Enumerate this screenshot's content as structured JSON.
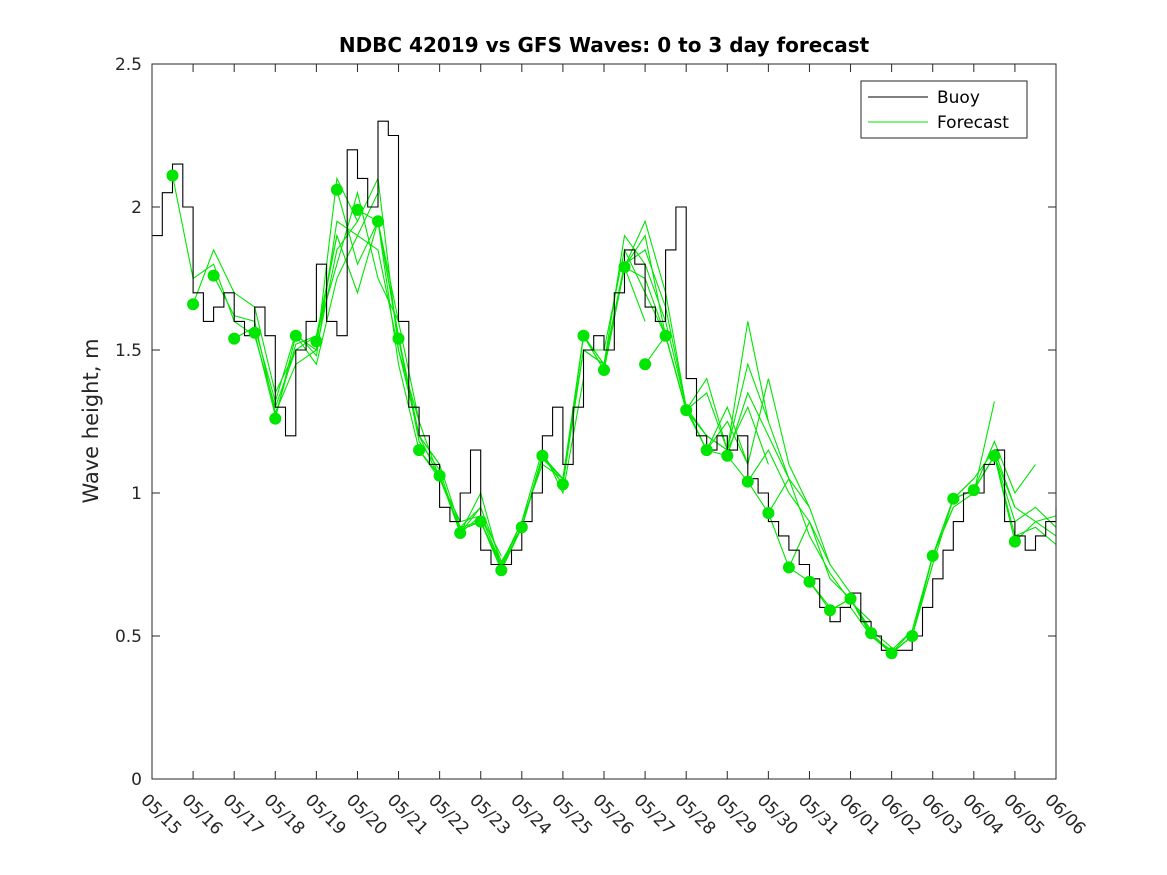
{
  "chart_data": {
    "type": "line",
    "title": "NDBC 42019 vs GFS Waves: 0 to 3 day forecast",
    "xlabel": "",
    "ylabel": "Wave height, m",
    "x_domain": [
      0,
      22
    ],
    "ylim": [
      0,
      2.5
    ],
    "y_ticks": [
      0,
      0.5,
      1,
      1.5,
      2,
      2.5
    ],
    "y_tick_labels": [
      "0",
      "0.5",
      "1",
      "1.5",
      "2",
      "2.5"
    ],
    "x_ticks": [
      0,
      1,
      2,
      3,
      4,
      5,
      6,
      7,
      8,
      9,
      10,
      11,
      12,
      13,
      14,
      15,
      16,
      17,
      18,
      19,
      20,
      21,
      22
    ],
    "x_tick_labels": [
      "05/15",
      "05/16",
      "05/17",
      "05/18",
      "05/19",
      "05/20",
      "05/21",
      "05/22",
      "05/23",
      "05/24",
      "05/25",
      "05/26",
      "05/27",
      "05/28",
      "05/29",
      "05/30",
      "05/31",
      "06/01",
      "06/02",
      "06/03",
      "06/04",
      "06/05",
      "06/06"
    ],
    "legend": {
      "position": "top-right",
      "entries": [
        "Buoy",
        "Forecast"
      ]
    },
    "colors": {
      "buoy": "#000000",
      "forecast": "#00e600",
      "axis": "#262626"
    },
    "buoy": {
      "name": "Buoy",
      "x": [
        0,
        0.25,
        0.5,
        0.75,
        1,
        1.25,
        1.5,
        1.75,
        2,
        2.25,
        2.5,
        2.75,
        3,
        3.25,
        3.5,
        3.75,
        4,
        4.25,
        4.5,
        4.75,
        5,
        5.25,
        5.5,
        5.75,
        6,
        6.25,
        6.5,
        6.75,
        7,
        7.25,
        7.5,
        7.75,
        8,
        8.25,
        8.5,
        8.75,
        9,
        9.25,
        9.5,
        9.75,
        10,
        10.25,
        10.5,
        10.75,
        11,
        11.25,
        11.5,
        11.75,
        12,
        12.25,
        12.5,
        12.75,
        13,
        13.25,
        13.5,
        13.75,
        14,
        14.25,
        14.5,
        14.75,
        15,
        15.25,
        15.5,
        15.75,
        16,
        16.25,
        16.5,
        16.75,
        17,
        17.25,
        17.5,
        17.75,
        18,
        18.25,
        18.5,
        18.75,
        19,
        19.25,
        19.5,
        19.75,
        20,
        20.25,
        20.5,
        20.75,
        21,
        21.25,
        21.5,
        21.75,
        22
      ],
      "y": [
        1.9,
        2.05,
        2.15,
        2.0,
        1.7,
        1.6,
        1.65,
        1.7,
        1.6,
        1.55,
        1.65,
        1.55,
        1.3,
        1.2,
        1.5,
        1.6,
        1.8,
        1.6,
        1.55,
        2.2,
        2.1,
        2.0,
        2.3,
        2.25,
        1.6,
        1.3,
        1.2,
        1.1,
        0.95,
        0.9,
        1.0,
        1.15,
        0.8,
        0.75,
        0.75,
        0.8,
        0.9,
        1.0,
        1.2,
        1.3,
        1.1,
        1.3,
        1.5,
        1.55,
        1.5,
        1.7,
        1.85,
        1.8,
        1.65,
        1.6,
        1.85,
        2.0,
        1.4,
        1.2,
        1.15,
        1.2,
        1.15,
        1.2,
        1.05,
        1.0,
        0.9,
        0.85,
        0.8,
        0.75,
        0.7,
        0.6,
        0.55,
        0.6,
        0.65,
        0.55,
        0.5,
        0.45,
        0.45,
        0.45,
        0.5,
        0.6,
        0.7,
        0.8,
        0.9,
        1.0,
        1.0,
        1.1,
        1.15,
        0.9,
        0.85,
        0.8,
        0.85,
        0.9,
        0.95
      ]
    },
    "forecast_points": {
      "name": "Forecast",
      "x": [
        0.5,
        1,
        1.5,
        2,
        2.5,
        3,
        3.5,
        4,
        4.5,
        5,
        5.5,
        6,
        6.5,
        7,
        7.5,
        8,
        8.5,
        9,
        9.5,
        10,
        10.5,
        11,
        11.5,
        12,
        12.5,
        13,
        13.5,
        14,
        14.5,
        15,
        15.5,
        16,
        16.5,
        17,
        17.5,
        18,
        18.5,
        19,
        19.5,
        20,
        20.5,
        21
      ],
      "y": [
        2.11,
        1.66,
        1.76,
        1.54,
        1.56,
        1.26,
        1.55,
        1.53,
        2.06,
        1.99,
        1.95,
        1.54,
        1.15,
        1.06,
        0.86,
        0.9,
        0.73,
        0.88,
        1.13,
        1.03,
        1.55,
        1.43,
        1.79,
        1.45,
        1.55,
        1.29,
        1.15,
        1.13,
        1.04,
        0.93,
        0.74,
        0.69,
        0.59,
        0.63,
        0.51,
        0.44,
        0.5,
        0.78,
        0.98,
        1.01,
        1.13,
        0.83
      ]
    },
    "forecast_runs": [
      {
        "x": [
          0.5,
          1,
          1.5,
          2,
          2.5,
          3,
          3.5
        ],
        "y": [
          2.11,
          1.75,
          1.8,
          1.6,
          1.55,
          1.3,
          1.5
        ]
      },
      {
        "x": [
          1,
          1.5,
          2,
          2.5,
          3,
          3.5,
          4,
          4.5
        ],
        "y": [
          1.66,
          1.85,
          1.7,
          1.65,
          1.35,
          1.5,
          1.55,
          1.9
        ]
      },
      {
        "x": [
          1.5,
          2,
          2.5,
          3,
          3.5,
          4,
          4.5,
          5
        ],
        "y": [
          1.76,
          1.62,
          1.6,
          1.28,
          1.45,
          1.5,
          1.85,
          1.95
        ]
      },
      {
        "x": [
          2,
          2.5,
          3,
          3.5,
          4,
          4.5,
          5,
          5.5
        ],
        "y": [
          1.54,
          1.58,
          1.32,
          1.56,
          1.48,
          1.95,
          1.9,
          2.05
        ]
      },
      {
        "x": [
          2.5,
          3,
          3.5,
          4,
          4.5,
          5,
          5.5,
          6
        ],
        "y": [
          1.56,
          1.27,
          1.52,
          1.55,
          1.8,
          2.05,
          1.75,
          1.6
        ]
      },
      {
        "x": [
          3,
          3.5,
          4,
          4.5,
          5,
          5.5,
          6,
          6.5
        ],
        "y": [
          1.26,
          1.55,
          1.5,
          2.1,
          1.95,
          2.1,
          1.5,
          1.25
        ]
      },
      {
        "x": [
          3.5,
          4,
          4.5,
          5,
          5.5,
          6,
          6.5,
          7
        ],
        "y": [
          1.55,
          1.45,
          1.75,
          1.9,
          1.85,
          1.5,
          1.2,
          1.1
        ]
      },
      {
        "x": [
          4,
          4.5,
          5,
          5.5,
          6,
          6.5,
          7,
          7.5
        ],
        "y": [
          1.53,
          1.9,
          1.7,
          1.95,
          1.45,
          1.15,
          1.05,
          0.9
        ]
      },
      {
        "x": [
          4.5,
          5,
          5.5,
          6,
          6.5,
          7,
          7.5,
          8
        ],
        "y": [
          2.06,
          1.8,
          1.95,
          1.55,
          1.2,
          1.1,
          0.88,
          0.95
        ]
      },
      {
        "x": [
          5,
          5.5,
          6,
          6.5,
          7,
          7.5,
          8,
          8.5
        ],
        "y": [
          1.99,
          1.95,
          1.6,
          1.25,
          1.05,
          0.9,
          0.92,
          0.78
        ]
      },
      {
        "x": [
          5.5,
          6,
          6.5,
          7,
          7.5,
          8,
          8.5,
          9
        ],
        "y": [
          1.95,
          1.54,
          1.2,
          1.05,
          0.88,
          0.9,
          0.75,
          0.9
        ]
      },
      {
        "x": [
          6,
          6.5,
          7,
          7.5,
          8,
          8.5,
          9,
          9.5
        ],
        "y": [
          1.54,
          1.18,
          1.08,
          0.86,
          0.95,
          0.76,
          0.88,
          1.12
        ]
      },
      {
        "x": [
          6.5,
          7,
          7.5,
          8,
          8.5,
          9,
          9.5,
          10
        ],
        "y": [
          1.15,
          1.06,
          0.87,
          0.9,
          0.74,
          0.9,
          1.1,
          1.05
        ]
      },
      {
        "x": [
          7,
          7.5,
          8,
          8.5,
          9,
          9.5,
          10,
          10.5
        ],
        "y": [
          1.06,
          0.86,
          0.92,
          0.75,
          0.9,
          1.15,
          1.0,
          1.4
        ]
      },
      {
        "x": [
          7.5,
          8,
          8.5,
          9,
          9.5,
          10,
          10.5,
          11
        ],
        "y": [
          0.86,
          1.0,
          0.74,
          0.88,
          1.12,
          1.05,
          1.5,
          1.45
        ]
      },
      {
        "x": [
          8,
          8.5,
          9,
          9.5,
          10,
          10.5,
          11,
          11.5
        ],
        "y": [
          0.9,
          0.73,
          0.88,
          1.13,
          1.05,
          1.55,
          1.45,
          1.8
        ]
      },
      {
        "x": [
          8.5,
          9,
          9.5,
          10,
          10.5,
          11,
          11.5,
          12
        ],
        "y": [
          0.73,
          0.88,
          1.13,
          1.03,
          1.55,
          1.43,
          1.79,
          1.6
        ]
      },
      {
        "x": [
          9,
          9.5,
          10,
          10.5,
          11,
          11.5,
          12,
          12.5
        ],
        "y": [
          0.88,
          1.13,
          1.05,
          1.5,
          1.5,
          1.85,
          1.7,
          1.55
        ]
      },
      {
        "x": [
          9.5,
          10,
          10.5,
          11,
          11.5,
          12,
          12.5,
          13
        ],
        "y": [
          1.13,
          1.03,
          1.55,
          1.45,
          1.9,
          1.8,
          1.6,
          1.3
        ]
      },
      {
        "x": [
          10,
          10.5,
          11,
          11.5,
          12,
          12.5,
          13,
          13.5
        ],
        "y": [
          1.03,
          1.5,
          1.45,
          1.8,
          1.85,
          1.65,
          1.3,
          1.2
        ]
      },
      {
        "x": [
          10.5,
          11,
          11.5,
          12,
          12.5,
          13,
          13.5,
          14
        ],
        "y": [
          1.55,
          1.43,
          1.79,
          1.9,
          1.55,
          1.29,
          1.2,
          1.15
        ]
      },
      {
        "x": [
          11,
          11.5,
          12,
          12.5,
          13,
          13.5,
          14,
          14.5
        ],
        "y": [
          1.43,
          1.79,
          1.95,
          1.7,
          1.3,
          1.15,
          1.25,
          1.1
        ]
      },
      {
        "x": [
          11.5,
          12,
          12.5,
          13,
          13.5,
          14,
          14.5,
          15
        ],
        "y": [
          1.79,
          1.75,
          1.55,
          1.29,
          1.2,
          1.15,
          1.45,
          1.25
        ]
      },
      {
        "x": [
          12,
          12.5,
          13,
          13.5,
          14,
          14.5,
          15
        ],
        "y": [
          1.45,
          1.55,
          1.29,
          1.35,
          1.15,
          1.3,
          1.1
        ]
      },
      {
        "x": [
          12.5,
          13,
          13.5,
          14,
          14.5,
          15,
          15.5
        ],
        "y": [
          1.55,
          1.29,
          1.4,
          1.15,
          1.6,
          1.25,
          1.05
        ]
      },
      {
        "x": [
          13,
          13.5,
          14,
          14.5,
          15,
          15.5,
          16
        ],
        "y": [
          1.29,
          1.15,
          1.3,
          1.1,
          1.4,
          1.1,
          0.95
        ]
      },
      {
        "x": [
          13.5,
          14,
          14.5,
          15,
          15.5,
          16,
          16.5
        ],
        "y": [
          1.15,
          1.13,
          1.35,
          1.2,
          1.05,
          0.95,
          0.75
        ]
      },
      {
        "x": [
          14,
          14.5,
          15,
          15.5,
          16,
          16.5,
          17
        ],
        "y": [
          1.13,
          1.04,
          1.15,
          1.0,
          0.9,
          0.75,
          0.65
        ]
      },
      {
        "x": [
          14.5,
          15,
          15.5,
          16,
          16.5,
          17,
          17.5
        ],
        "y": [
          1.04,
          0.93,
          1.05,
          0.85,
          0.72,
          0.62,
          0.55
        ]
      },
      {
        "x": [
          15,
          15.5,
          16,
          16.5,
          17,
          17.5,
          18
        ],
        "y": [
          0.93,
          0.74,
          0.9,
          0.7,
          0.63,
          0.52,
          0.46
        ]
      },
      {
        "x": [
          15.5,
          16,
          16.5,
          17,
          17.5,
          18,
          18.5
        ],
        "y": [
          0.74,
          0.69,
          0.6,
          0.6,
          0.5,
          0.45,
          0.52
        ]
      },
      {
        "x": [
          16,
          16.5,
          17,
          17.5,
          18,
          18.5,
          19
        ],
        "y": [
          0.69,
          0.59,
          0.63,
          0.5,
          0.44,
          0.5,
          0.75
        ]
      },
      {
        "x": [
          16.5,
          17,
          17.5,
          18,
          18.5,
          19,
          19.5
        ],
        "y": [
          0.59,
          0.63,
          0.51,
          0.44,
          0.5,
          0.78,
          0.95
        ]
      },
      {
        "x": [
          17,
          17.5,
          18,
          18.5,
          19,
          19.5,
          20
        ],
        "y": [
          0.63,
          0.51,
          0.44,
          0.5,
          0.75,
          0.98,
          1.05
        ]
      },
      {
        "x": [
          17.5,
          18,
          18.5,
          19,
          19.5,
          20,
          20.5
        ],
        "y": [
          0.51,
          0.44,
          0.52,
          0.78,
          0.95,
          1.0,
          1.32
        ]
      },
      {
        "x": [
          18,
          18.5,
          19,
          19.5,
          20,
          20.5,
          21
        ],
        "y": [
          0.44,
          0.5,
          0.78,
          0.98,
          1.05,
          1.15,
          0.95
        ]
      },
      {
        "x": [
          18.5,
          19,
          19.5,
          20,
          20.5,
          21,
          21.5
        ],
        "y": [
          0.5,
          0.78,
          0.98,
          1.01,
          1.18,
          1.0,
          1.1
        ]
      },
      {
        "x": [
          19,
          19.5,
          20,
          20.5,
          21,
          21.5,
          22
        ],
        "y": [
          0.78,
          0.98,
          1.01,
          1.13,
          0.9,
          0.95,
          0.88
        ]
      },
      {
        "x": [
          19.5,
          20,
          20.5,
          21,
          21.5,
          22
        ],
        "y": [
          0.98,
          1.01,
          1.13,
          0.95,
          0.9,
          0.85
        ]
      },
      {
        "x": [
          20,
          20.5,
          21,
          21.5,
          22
        ],
        "y": [
          1.01,
          1.13,
          0.85,
          0.88,
          0.82
        ]
      },
      {
        "x": [
          20.5,
          21,
          21.5,
          22
        ],
        "y": [
          1.13,
          0.83,
          0.9,
          0.92
        ]
      }
    ]
  }
}
